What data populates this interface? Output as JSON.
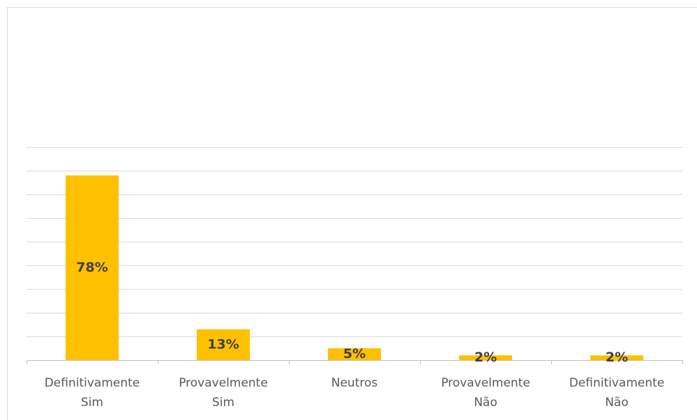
{
  "chart_data": {
    "type": "bar",
    "categories": [
      "Definitivamente\nSim",
      "Provavelmente\nSim",
      "Neutros",
      "Provavelmente\nNão",
      "Definitivamente\nNão"
    ],
    "values": [
      78,
      13,
      5,
      2,
      2
    ],
    "value_labels": [
      "78%",
      "13%",
      "5%",
      "2%",
      "2%"
    ],
    "color": "#ffc000",
    "ylim": [
      0,
      90
    ],
    "yticks": [
      0,
      10,
      20,
      30,
      40,
      50,
      60,
      70,
      80,
      90
    ],
    "grid": true
  }
}
